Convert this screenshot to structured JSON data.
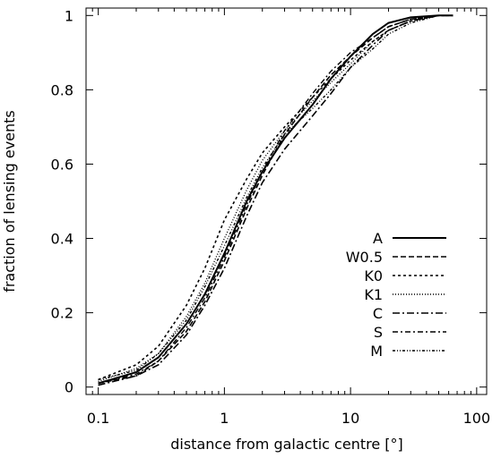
{
  "chart_data": {
    "type": "line",
    "xlabel": "distance from galactic centre [°]",
    "ylabel": "fraction of lensing events",
    "xscale": "log",
    "xlim": [
      0.08,
      120
    ],
    "ylim": [
      -0.02,
      1.02
    ],
    "xticks": [
      {
        "value": 0.1,
        "label": "0.1"
      },
      {
        "value": 1,
        "label": "1"
      },
      {
        "value": 10,
        "label": "10"
      },
      {
        "value": 100,
        "label": "100"
      }
    ],
    "yticks": [
      {
        "value": 0,
        "label": "0"
      },
      {
        "value": 0.2,
        "label": "0.2"
      },
      {
        "value": 0.4,
        "label": "0.4"
      },
      {
        "value": 0.6,
        "label": "0.6"
      },
      {
        "value": 0.8,
        "label": "0.8"
      },
      {
        "value": 1,
        "label": "1"
      }
    ],
    "grid": false,
    "legend_position": "lower-right",
    "series": [
      {
        "name": "A",
        "dash": "solid",
        "width": 2.0,
        "x": [
          0.1,
          0.2,
          0.3,
          0.5,
          0.7,
          1,
          1.5,
          2,
          3,
          5,
          7,
          10,
          15,
          20,
          30,
          50,
          65
        ],
        "y": [
          0.01,
          0.04,
          0.08,
          0.17,
          0.25,
          0.36,
          0.5,
          0.58,
          0.67,
          0.76,
          0.83,
          0.89,
          0.95,
          0.98,
          0.995,
          1.0,
          1.0
        ]
      },
      {
        "name": "W0.5",
        "dash": "6,3",
        "width": 1.6,
        "x": [
          0.1,
          0.2,
          0.3,
          0.5,
          0.7,
          1,
          1.5,
          2,
          3,
          5,
          7,
          10,
          15,
          20,
          30,
          50,
          65
        ],
        "y": [
          0.01,
          0.03,
          0.07,
          0.15,
          0.23,
          0.34,
          0.48,
          0.57,
          0.68,
          0.78,
          0.84,
          0.89,
          0.94,
          0.97,
          0.99,
          1.0,
          1.0
        ]
      },
      {
        "name": "K0",
        "dash": "3,3",
        "width": 1.6,
        "x": [
          0.1,
          0.2,
          0.3,
          0.5,
          0.7,
          1,
          1.5,
          2,
          3,
          5,
          7,
          10,
          15,
          20,
          30,
          50,
          65
        ],
        "y": [
          0.02,
          0.06,
          0.11,
          0.22,
          0.32,
          0.45,
          0.56,
          0.63,
          0.7,
          0.78,
          0.83,
          0.88,
          0.93,
          0.96,
          0.985,
          1.0,
          1.0
        ]
      },
      {
        "name": "K1",
        "dash": "1,2",
        "width": 1.4,
        "x": [
          0.1,
          0.2,
          0.3,
          0.5,
          0.7,
          1,
          1.5,
          2,
          3,
          5,
          7,
          10,
          15,
          20,
          30,
          50,
          65
        ],
        "y": [
          0.015,
          0.05,
          0.09,
          0.19,
          0.28,
          0.4,
          0.53,
          0.61,
          0.69,
          0.77,
          0.82,
          0.87,
          0.93,
          0.96,
          0.985,
          1.0,
          1.0
        ]
      },
      {
        "name": "C",
        "dash": "8,3,2,3",
        "width": 1.6,
        "x": [
          0.1,
          0.2,
          0.3,
          0.5,
          0.7,
          1,
          1.5,
          2,
          3,
          5,
          7,
          10,
          15,
          20,
          30,
          50,
          65
        ],
        "y": [
          0.005,
          0.03,
          0.06,
          0.14,
          0.22,
          0.32,
          0.46,
          0.55,
          0.64,
          0.73,
          0.79,
          0.86,
          0.92,
          0.96,
          0.985,
          1.0,
          1.0
        ]
      },
      {
        "name": "S",
        "dash": "6,3,2,3",
        "width": 1.4,
        "x": [
          0.1,
          0.2,
          0.3,
          0.5,
          0.7,
          1,
          1.5,
          2,
          3,
          5,
          7,
          10,
          15,
          20,
          30,
          50,
          65
        ],
        "y": [
          0.01,
          0.035,
          0.07,
          0.16,
          0.24,
          0.35,
          0.49,
          0.58,
          0.69,
          0.79,
          0.85,
          0.9,
          0.94,
          0.97,
          0.99,
          1.0,
          1.0
        ]
      },
      {
        "name": "M",
        "dash": "3,2,1,2,1,2",
        "width": 1.4,
        "x": [
          0.1,
          0.2,
          0.3,
          0.5,
          0.7,
          1,
          1.5,
          2,
          3,
          5,
          7,
          10,
          15,
          20,
          30,
          50,
          65
        ],
        "y": [
          0.02,
          0.045,
          0.09,
          0.18,
          0.27,
          0.38,
          0.51,
          0.59,
          0.68,
          0.75,
          0.8,
          0.86,
          0.91,
          0.95,
          0.98,
          1.0,
          1.0
        ]
      }
    ]
  }
}
